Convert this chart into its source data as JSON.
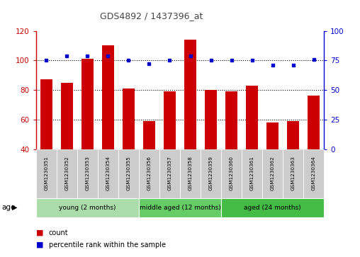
{
  "title": "GDS4892 / 1437396_at",
  "samples": [
    "GSM1230351",
    "GSM1230352",
    "GSM1230353",
    "GSM1230354",
    "GSM1230355",
    "GSM1230356",
    "GSM1230357",
    "GSM1230358",
    "GSM1230359",
    "GSM1230360",
    "GSM1230361",
    "GSM1230362",
    "GSM1230363",
    "GSM1230364"
  ],
  "counts": [
    87,
    85,
    101,
    110,
    81,
    59,
    79,
    114,
    80,
    79,
    83,
    58,
    59,
    76
  ],
  "percentiles": [
    75,
    79,
    79,
    79,
    75,
    72,
    75,
    79,
    75,
    75,
    75,
    71,
    71,
    76
  ],
  "ylim_left": [
    40,
    120
  ],
  "ylim_right": [
    0,
    100
  ],
  "yticks_left": [
    40,
    60,
    80,
    100,
    120
  ],
  "yticks_right": [
    0,
    25,
    50,
    75,
    100
  ],
  "bar_color": "#cc0000",
  "dot_color": "#0000cc",
  "groups": [
    {
      "label": "young (2 months)",
      "start": 0,
      "end": 5,
      "color": "#aaddaa"
    },
    {
      "label": "middle aged (12 months)",
      "start": 5,
      "end": 9,
      "color": "#66cc66"
    },
    {
      "label": "aged (24 months)",
      "start": 9,
      "end": 14,
      "color": "#44bb44"
    }
  ],
  "age_label": "age",
  "legend_count": "count",
  "legend_percentile": "percentile rank within the sample",
  "background_color": "#ffffff",
  "sample_box_color": "#cccccc",
  "grid_yticks": [
    60,
    80,
    100
  ],
  "left_spine_color": "#cc0000",
  "right_spine_color": "#0000cc"
}
